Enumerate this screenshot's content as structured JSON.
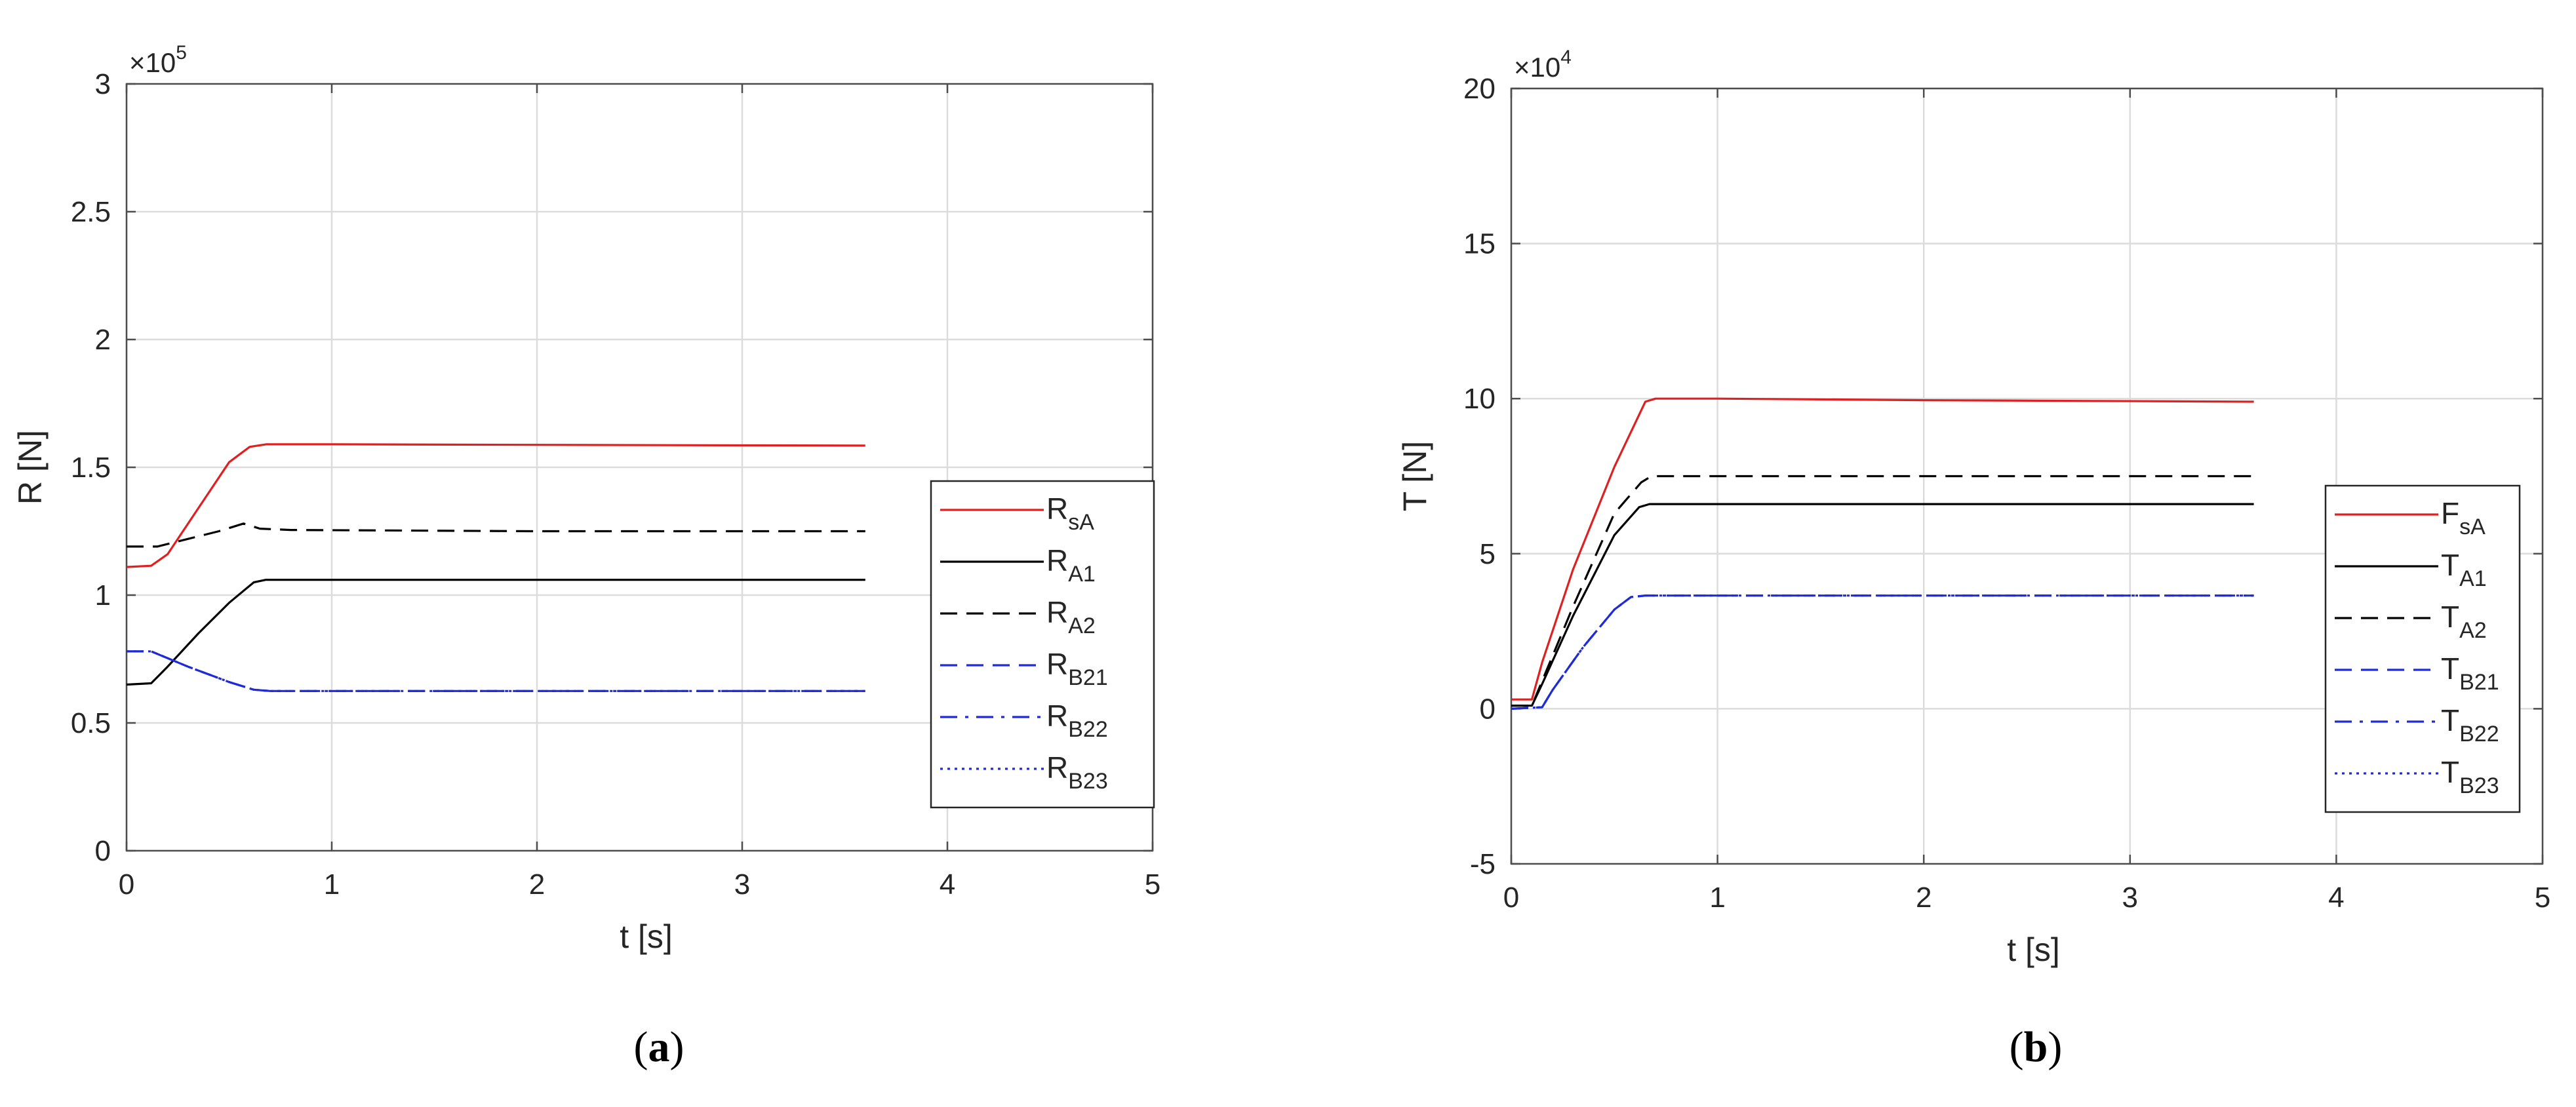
{
  "charts": [
    {
      "id": "a",
      "caption": "a",
      "chart_data": {
        "type": "line",
        "xlabel": "t [s]",
        "ylabel": "R [N]",
        "exponent_label": "×10",
        "exponent_power": "5",
        "xlim": [
          0,
          5
        ],
        "ylim": [
          0,
          3
        ],
        "xticks": [
          0,
          1,
          2,
          3,
          4,
          5
        ],
        "yticks": [
          0,
          0.5,
          1,
          1.5,
          2,
          2.5,
          3
        ],
        "xtick_labels": [
          "0",
          "1",
          "2",
          "3",
          "4",
          "5"
        ],
        "ytick_labels": [
          "0",
          "0.5",
          "1",
          "1.5",
          "2",
          "2.5",
          "3"
        ],
        "grid": true,
        "legend_position": "right",
        "series": [
          {
            "name": "R",
            "sub": "sA",
            "color": "#e02020",
            "dash": "solid",
            "x": [
              0,
              0.12,
              0.2,
              0.35,
              0.5,
              0.6,
              0.68,
              1.0,
              2.0,
              3.6
            ],
            "y": [
              1.11,
              1.115,
              1.16,
              1.34,
              1.52,
              1.58,
              1.59,
              1.59,
              1.588,
              1.585
            ]
          },
          {
            "name": "R",
            "sub": "A1",
            "color": "#000000",
            "dash": "solid",
            "x": [
              0,
              0.12,
              0.2,
              0.35,
              0.5,
              0.62,
              0.68,
              1.0,
              2.0,
              3.6
            ],
            "y": [
              0.65,
              0.655,
              0.72,
              0.85,
              0.97,
              1.05,
              1.06,
              1.06,
              1.06,
              1.06
            ]
          },
          {
            "name": "R",
            "sub": "A2",
            "color": "#000000",
            "dash": "dash",
            "x": [
              0,
              0.15,
              0.3,
              0.45,
              0.57,
              0.65,
              0.8,
              2.0,
              3.6
            ],
            "y": [
              1.19,
              1.19,
              1.22,
              1.25,
              1.28,
              1.26,
              1.255,
              1.25,
              1.25
            ]
          },
          {
            "name": "R",
            "sub": "B21",
            "color": "#1f2bd8",
            "dash": "dash",
            "x": [
              0,
              0.12,
              0.3,
              0.5,
              0.62,
              0.7,
              1.0,
              2.0,
              3.6
            ],
            "y": [
              0.78,
              0.78,
              0.72,
              0.66,
              0.63,
              0.625,
              0.625,
              0.625,
              0.625
            ]
          },
          {
            "name": "R",
            "sub": "B22",
            "color": "#1f2bd8",
            "dash": "dashdot",
            "x": [
              0,
              0.12,
              0.3,
              0.5,
              0.62,
              0.7,
              1.0,
              2.0,
              3.6
            ],
            "y": [
              0.78,
              0.78,
              0.72,
              0.66,
              0.63,
              0.625,
              0.625,
              0.625,
              0.625
            ]
          },
          {
            "name": "R",
            "sub": "B23",
            "color": "#1f2bd8",
            "dash": "dot",
            "x": [
              0,
              0.12,
              0.3,
              0.5,
              0.62,
              0.7,
              1.0,
              2.0,
              3.6
            ],
            "y": [
              0.78,
              0.78,
              0.72,
              0.66,
              0.63,
              0.625,
              0.625,
              0.625,
              0.625
            ]
          }
        ]
      }
    },
    {
      "id": "b",
      "caption": "b",
      "chart_data": {
        "type": "line",
        "xlabel": "t [s]",
        "ylabel": "T [N]",
        "exponent_label": "×10",
        "exponent_power": "4",
        "xlim": [
          0,
          5
        ],
        "ylim": [
          -5,
          20
        ],
        "xticks": [
          0,
          1,
          2,
          3,
          4,
          5
        ],
        "yticks": [
          -5,
          0,
          5,
          10,
          15,
          20
        ],
        "xtick_labels": [
          "0",
          "1",
          "2",
          "3",
          "4",
          "5"
        ],
        "ytick_labels": [
          "-5",
          "0",
          "5",
          "10",
          "15",
          "20"
        ],
        "grid": true,
        "legend_position": "right",
        "series": [
          {
            "name": "F",
            "sub": "sA",
            "color": "#e02020",
            "dash": "solid",
            "x": [
              0,
              0.1,
              0.15,
              0.3,
              0.5,
              0.65,
              0.7,
              1.0,
              2.0,
              3.6
            ],
            "y": [
              0.3,
              0.3,
              1.5,
              4.5,
              7.8,
              9.9,
              10.0,
              10.0,
              9.95,
              9.9
            ]
          },
          {
            "name": "T",
            "sub": "A1",
            "color": "#000000",
            "dash": "solid",
            "x": [
              0,
              0.1,
              0.15,
              0.3,
              0.5,
              0.62,
              0.67,
              1.0,
              2.0,
              3.6
            ],
            "y": [
              0.1,
              0.1,
              0.8,
              3.0,
              5.6,
              6.5,
              6.6,
              6.6,
              6.6,
              6.6
            ]
          },
          {
            "name": "T",
            "sub": "A2",
            "color": "#000000",
            "dash": "dash",
            "x": [
              0,
              0.1,
              0.15,
              0.3,
              0.5,
              0.63,
              0.68,
              1.0,
              2.0,
              3.6
            ],
            "y": [
              0.1,
              0.1,
              0.9,
              3.3,
              6.3,
              7.3,
              7.5,
              7.5,
              7.5,
              7.5
            ]
          },
          {
            "name": "T",
            "sub": "B21",
            "color": "#1f2bd8",
            "dash": "dash",
            "x": [
              0,
              0.15,
              0.2,
              0.35,
              0.5,
              0.58,
              0.65,
              1.0,
              2.0,
              3.6
            ],
            "y": [
              0.0,
              0.05,
              0.6,
              2.0,
              3.2,
              3.6,
              3.65,
              3.65,
              3.65,
              3.65
            ]
          },
          {
            "name": "T",
            "sub": "B22",
            "color": "#1f2bd8",
            "dash": "dashdot",
            "x": [
              0,
              0.15,
              0.2,
              0.35,
              0.5,
              0.58,
              0.65,
              1.0,
              2.0,
              3.6
            ],
            "y": [
              0.0,
              0.05,
              0.6,
              2.0,
              3.2,
              3.6,
              3.65,
              3.65,
              3.65,
              3.65
            ]
          },
          {
            "name": "T",
            "sub": "B23",
            "color": "#1f2bd8",
            "dash": "dot",
            "x": [
              0,
              0.15,
              0.2,
              0.35,
              0.5,
              0.58,
              0.65,
              1.0,
              2.0,
              3.6
            ],
            "y": [
              0.0,
              0.05,
              0.6,
              2.0,
              3.2,
              3.6,
              3.65,
              3.65,
              3.65,
              3.65
            ]
          }
        ]
      }
    }
  ]
}
